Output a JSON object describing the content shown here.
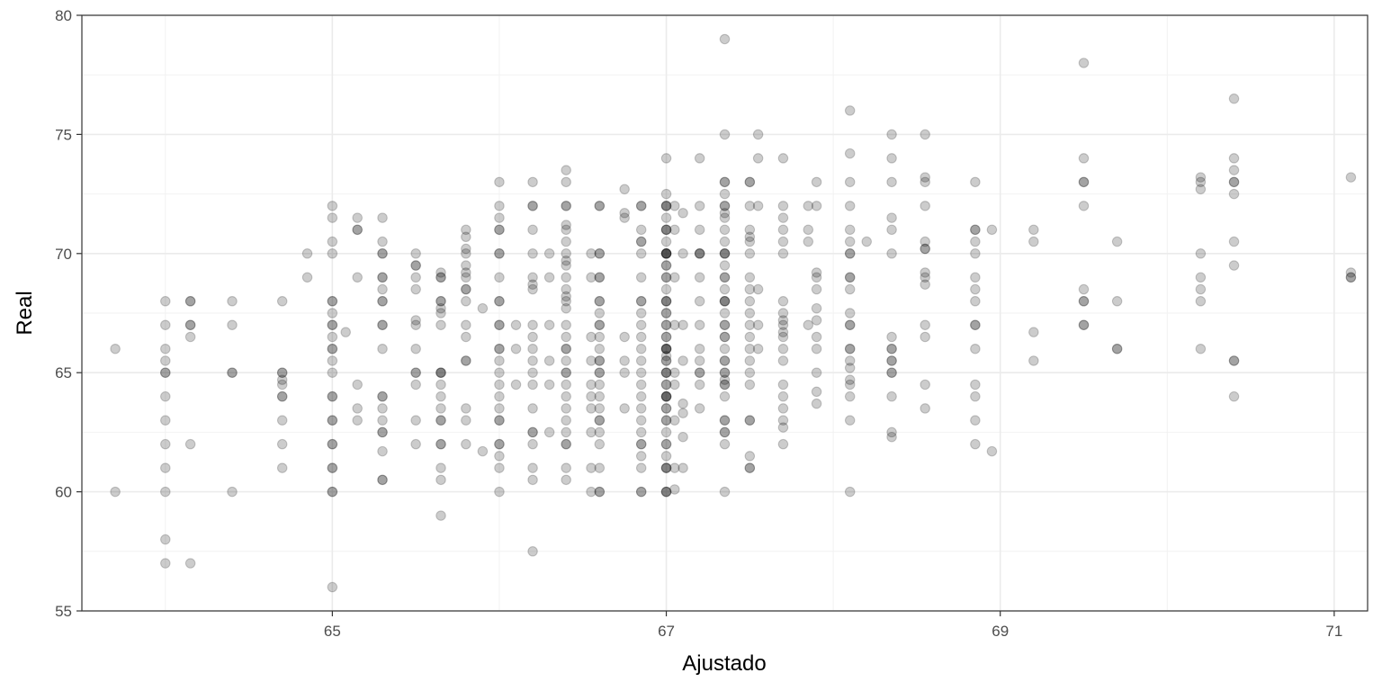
{
  "chart_data": {
    "type": "scatter",
    "title": "",
    "xlabel": "Ajustado",
    "ylabel": "Real",
    "xlim": [
      63.5,
      71.2
    ],
    "ylim": [
      55,
      80
    ],
    "x_ticks": [
      65,
      67,
      69,
      71
    ],
    "y_ticks": [
      55,
      60,
      65,
      70,
      75,
      80
    ],
    "x_tick_labels": [
      "65",
      "67",
      "69",
      "71"
    ],
    "y_tick_labels": [
      "55",
      "60",
      "65",
      "70",
      "75",
      "80"
    ],
    "grid": true,
    "legend": "none",
    "point_color": "#000000",
    "point_alpha": 0.2,
    "columns": [
      {
        "x": 63.7,
        "y": [
          66,
          60
        ]
      },
      {
        "x": 64.0,
        "y": [
          68,
          67,
          66,
          65.5,
          65,
          65,
          64,
          63,
          62,
          61,
          60,
          58,
          57
        ]
      },
      {
        "x": 64.15,
        "y": [
          68,
          68,
          67,
          67,
          66.5,
          62,
          57
        ]
      },
      {
        "x": 64.4,
        "y": [
          68,
          67,
          65,
          65,
          60
        ]
      },
      {
        "x": 64.7,
        "y": [
          68,
          65,
          65,
          64.7,
          64.5,
          64,
          64,
          63,
          62,
          61
        ]
      },
      {
        "x": 64.85,
        "y": [
          70,
          69
        ]
      },
      {
        "x": 65.0,
        "y": [
          72,
          71.5,
          70.5,
          70,
          68,
          68,
          67.5,
          67,
          67,
          66.5,
          66,
          66,
          65.5,
          65,
          64,
          64,
          63,
          63,
          62,
          62,
          61,
          61,
          60,
          60,
          56
        ]
      },
      {
        "x": 65.08,
        "y": [
          66.7
        ]
      },
      {
        "x": 65.15,
        "y": [
          71.5,
          71,
          71,
          69,
          64.5,
          63.5,
          63
        ]
      },
      {
        "x": 65.3,
        "y": [
          71.5,
          70.5,
          70,
          70,
          69,
          69,
          68.5,
          68,
          68,
          67,
          67,
          66,
          64,
          64,
          63.5,
          63,
          62.5,
          62.5,
          61.7,
          60.5,
          60.5
        ]
      },
      {
        "x": 65.5,
        "y": [
          70,
          69.5,
          69.5,
          69,
          68.5,
          67.2,
          67,
          66,
          65,
          65,
          64.5,
          63,
          62
        ]
      },
      {
        "x": 65.65,
        "y": [
          69.2,
          69,
          69,
          68,
          68,
          67.7,
          67.5,
          67,
          65,
          65,
          65,
          64.5,
          64,
          63.5,
          63,
          63,
          62,
          62,
          61,
          60.5,
          59
        ]
      },
      {
        "x": 65.8,
        "y": [
          71,
          70.7,
          70.2,
          70,
          69.5,
          69.2,
          69,
          68.5,
          68.5,
          68,
          67,
          66.5,
          65.5,
          65.5,
          63.5,
          63,
          62
        ]
      },
      {
        "x": 65.9,
        "y": [
          67.7,
          61.7
        ]
      },
      {
        "x": 66.0,
        "y": [
          73,
          72,
          71.5,
          71,
          71,
          70,
          70,
          69,
          68,
          68,
          67,
          67,
          66,
          66,
          65.5,
          65,
          64.5,
          64,
          63.5,
          63,
          63,
          62,
          62,
          61.5,
          61,
          60
        ]
      },
      {
        "x": 66.1,
        "y": [
          67,
          66,
          64.5
        ]
      },
      {
        "x": 66.2,
        "y": [
          73,
          72,
          72,
          71,
          70,
          69,
          68.7,
          68.5,
          67,
          66.5,
          66,
          65.5,
          65,
          64.5,
          63.5,
          62.5,
          62.5,
          62,
          61,
          60.5,
          57.5
        ]
      },
      {
        "x": 66.3,
        "y": [
          70,
          69,
          67,
          65.5,
          64.5,
          62.5
        ]
      },
      {
        "x": 66.4,
        "y": [
          73.5,
          73,
          72,
          72,
          71.2,
          71,
          70.5,
          70,
          69.7,
          69.5,
          69,
          68.5,
          68.2,
          68,
          67.7,
          67,
          66.5,
          66,
          66,
          65.5,
          65,
          65,
          64.5,
          64,
          63.5,
          63,
          62.5,
          62,
          62,
          61,
          60.5
        ]
      },
      {
        "x": 66.55,
        "y": [
          70,
          69,
          66.5,
          65.5,
          64.5,
          64,
          63.5,
          62.5,
          61,
          60
        ]
      },
      {
        "x": 66.6,
        "y": [
          72,
          72,
          70,
          70,
          69,
          69,
          68,
          68,
          67.5,
          67,
          67,
          66.5,
          66,
          65.5,
          65.5,
          65,
          65,
          64.5,
          64,
          63.5,
          63,
          63,
          62.5,
          62,
          61,
          60,
          60
        ]
      },
      {
        "x": 66.85,
        "y": [
          72,
          72,
          71,
          70.5,
          70.5,
          70,
          69,
          68,
          68,
          67.5,
          67,
          66.5,
          66,
          65.5,
          65,
          64.5,
          64,
          63.5,
          63,
          62.5,
          62,
          62,
          61.5,
          61,
          60,
          60
        ]
      },
      {
        "x": 66.75,
        "y": [
          72.7,
          71.7,
          71.5,
          66.5,
          65.5,
          65,
          63.5
        ]
      },
      {
        "x": 67.0,
        "y": [
          72.5,
          72,
          71.5,
          71,
          70,
          69.5,
          69,
          68,
          67.5,
          67,
          66.5,
          66,
          65.7,
          65.5,
          65,
          64.5,
          64,
          64,
          63.5,
          63,
          62.5,
          62,
          61.5,
          61,
          60
        ]
      },
      {
        "x": 67.1,
        "y": [
          71.7,
          70,
          67,
          65.5,
          63.7,
          63.3,
          62.3,
          61
        ]
      },
      {
        "x": 67.0,
        "y": [
          70.5,
          70,
          66
        ]
      },
      {
        "x": 67.0,
        "y": [
          74,
          72,
          72,
          71,
          71,
          70,
          70,
          70,
          69.5,
          69,
          68.5,
          68,
          68,
          67.5,
          67,
          66.5,
          66,
          66,
          65.5,
          65,
          65,
          64.5,
          64,
          64,
          63.5,
          63,
          62,
          61,
          61,
          60,
          60
        ]
      },
      {
        "x": 67.05,
        "y": [
          72,
          71,
          69,
          67,
          65,
          64.5,
          63,
          61,
          60.1
        ]
      },
      {
        "x": 67.2,
        "y": [
          74,
          72,
          71,
          70,
          70,
          70,
          69,
          68,
          67,
          66,
          65.5,
          65,
          65,
          64.5,
          63.5
        ]
      },
      {
        "x": 67.35,
        "y": [
          72,
          70,
          69.5,
          68,
          67,
          66.5,
          65.5,
          64.7,
          64.5
        ]
      },
      {
        "x": 67.35,
        "y": [
          79,
          75,
          73,
          73,
          72.5,
          72,
          71.7,
          71.5,
          71,
          70.5,
          70,
          70,
          69,
          69,
          68.5,
          68,
          68,
          67.5,
          67,
          66.5,
          66,
          65.5,
          65,
          65,
          64.5,
          64,
          63,
          63,
          62.5,
          62.5,
          62,
          60
        ]
      },
      {
        "x": 67.5,
        "y": [
          73,
          73,
          72,
          71,
          70.7,
          70.5,
          70,
          69,
          68.5,
          68,
          67.5,
          67,
          66.5,
          66,
          65.5,
          65,
          64.5,
          63,
          63,
          61.5,
          61,
          61
        ]
      },
      {
        "x": 67.55,
        "y": [
          75,
          74,
          72,
          68.5,
          67,
          66
        ]
      },
      {
        "x": 67.7,
        "y": [
          74,
          72,
          71.5,
          71,
          70.5,
          70,
          68,
          67.5,
          67.2,
          67,
          66.7,
          66.5,
          66,
          65.5,
          64.5,
          64,
          63.5,
          63,
          62.7,
          62
        ]
      },
      {
        "x": 67.85,
        "y": [
          72,
          71,
          70.5,
          67
        ]
      },
      {
        "x": 67.9,
        "y": [
          73,
          72,
          69.2,
          69,
          68.5,
          67.7,
          67.2,
          66.5,
          66,
          65,
          64.2,
          63.7
        ]
      },
      {
        "x": 68.1,
        "y": [
          76,
          74.2,
          73,
          72,
          71,
          70.5,
          70,
          70,
          69,
          69,
          68.5,
          67.5,
          67,
          67,
          66,
          66,
          65.5,
          65.2,
          64.7,
          64.5,
          64,
          63,
          60
        ]
      },
      {
        "x": 68.2,
        "y": [
          70.5
        ]
      },
      {
        "x": 68.35,
        "y": [
          75,
          74,
          73,
          71.5,
          71,
          70,
          66.5,
          66,
          66,
          65.5,
          65.5,
          65,
          65,
          64,
          62.5,
          62.3
        ]
      },
      {
        "x": 68.55,
        "y": [
          75,
          73.2,
          73,
          72,
          70.5,
          70.2,
          70.2,
          69.2,
          69,
          68.7,
          67,
          66.5,
          64.5,
          63.5
        ]
      },
      {
        "x": 68.85,
        "y": [
          73,
          71,
          71,
          70.5,
          70,
          69,
          68.5,
          68,
          67,
          67,
          66,
          64.5,
          64,
          63,
          62
        ]
      },
      {
        "x": 68.95,
        "y": [
          71,
          61.7
        ]
      },
      {
        "x": 69.2,
        "y": [
          71,
          70.5,
          66.7,
          65.5
        ]
      },
      {
        "x": 69.5,
        "y": [
          78,
          74,
          73,
          73,
          72,
          68.5,
          68,
          68,
          67,
          67
        ]
      },
      {
        "x": 69.7,
        "y": [
          70.5,
          68,
          66,
          66
        ]
      },
      {
        "x": 70.2,
        "y": [
          73.2,
          73,
          72.7,
          70,
          69,
          68.5,
          68,
          66
        ]
      },
      {
        "x": 70.4,
        "y": [
          76.5,
          74,
          73.5,
          73,
          73,
          72.5,
          70.5,
          69.5,
          65.5,
          65.5,
          64
        ]
      },
      {
        "x": 71.1,
        "y": [
          73.2,
          69.2,
          69,
          69
        ]
      }
    ]
  }
}
